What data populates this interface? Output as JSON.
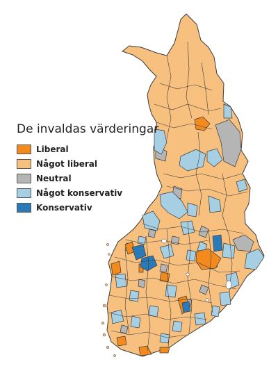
{
  "legend": {
    "title": "De invaldas värderingar",
    "items": [
      {
        "label": "Liberal",
        "color": "#f28a1e"
      },
      {
        "label": "Något liberal",
        "color": "#f8c07f"
      },
      {
        "label": "Neutral",
        "color": "#b5b5b5"
      },
      {
        "label": "Något konservativ",
        "color": "#a7cfe4"
      },
      {
        "label": "Konservativ",
        "color": "#2a7ab8"
      }
    ]
  },
  "map": {
    "border_color": "#3a3a3a",
    "lake_color": "#ffffff"
  }
}
